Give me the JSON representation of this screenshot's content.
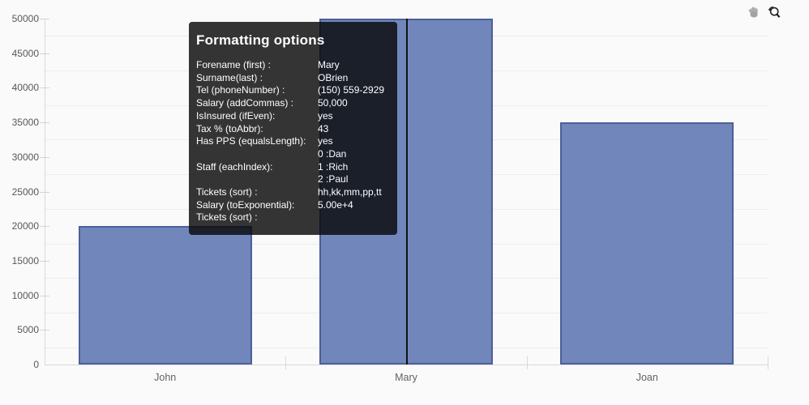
{
  "chart_data": {
    "type": "bar",
    "title": "",
    "categories": [
      "John",
      "Mary",
      "Joan"
    ],
    "series": [
      {
        "name": "Salary",
        "values": [
          20000,
          50000,
          35000
        ]
      }
    ],
    "ylim": [
      0,
      50000
    ],
    "ytick_step": 5000,
    "ytick_labels": [
      "0",
      "5000",
      "10000",
      "15000",
      "20000",
      "25000",
      "30000",
      "35000",
      "40000",
      "45000",
      "50000"
    ],
    "grid": true,
    "legend": "none",
    "bar_color": "#7187bc",
    "bar_border_color": "#4d5f99",
    "background_color": "#fafafa",
    "crosshair_category": "Mary"
  },
  "tooltip": {
    "title": "Formatting options",
    "rows": [
      {
        "label": "Forename (first) :",
        "value": "Mary"
      },
      {
        "label": "Surname(last) :",
        "value": "OBrien"
      },
      {
        "label": "Tel (phoneNumber) :",
        "value": "(150) 559-2929"
      },
      {
        "label": "Salary (addCommas) :",
        "value": "50,000"
      },
      {
        "label": "IsInsured (ifEven):",
        "value": "yes"
      },
      {
        "label": "Tax % (toAbbr):",
        "value": "43"
      },
      {
        "label": "Has PPS (equalsLength):",
        "value": "yes"
      },
      {
        "label": "",
        "value": "0 :Dan"
      },
      {
        "label": "Staff (eachIndex):",
        "value": "1 :Rich"
      },
      {
        "label": "",
        "value": "2 :Paul"
      },
      {
        "label": "Tickets (sort) :",
        "value": "hh,kk,mm,pp,tt"
      },
      {
        "label": "Salary (toExponential):",
        "value": "5.00e+4"
      },
      {
        "label": "Tickets (sort) :",
        "value": ""
      }
    ]
  },
  "toolbar": {
    "icons": [
      {
        "name": "pan-hand",
        "color": "#a2a2a2"
      },
      {
        "name": "zoom-reset",
        "color": "#1c1c1c"
      }
    ]
  }
}
